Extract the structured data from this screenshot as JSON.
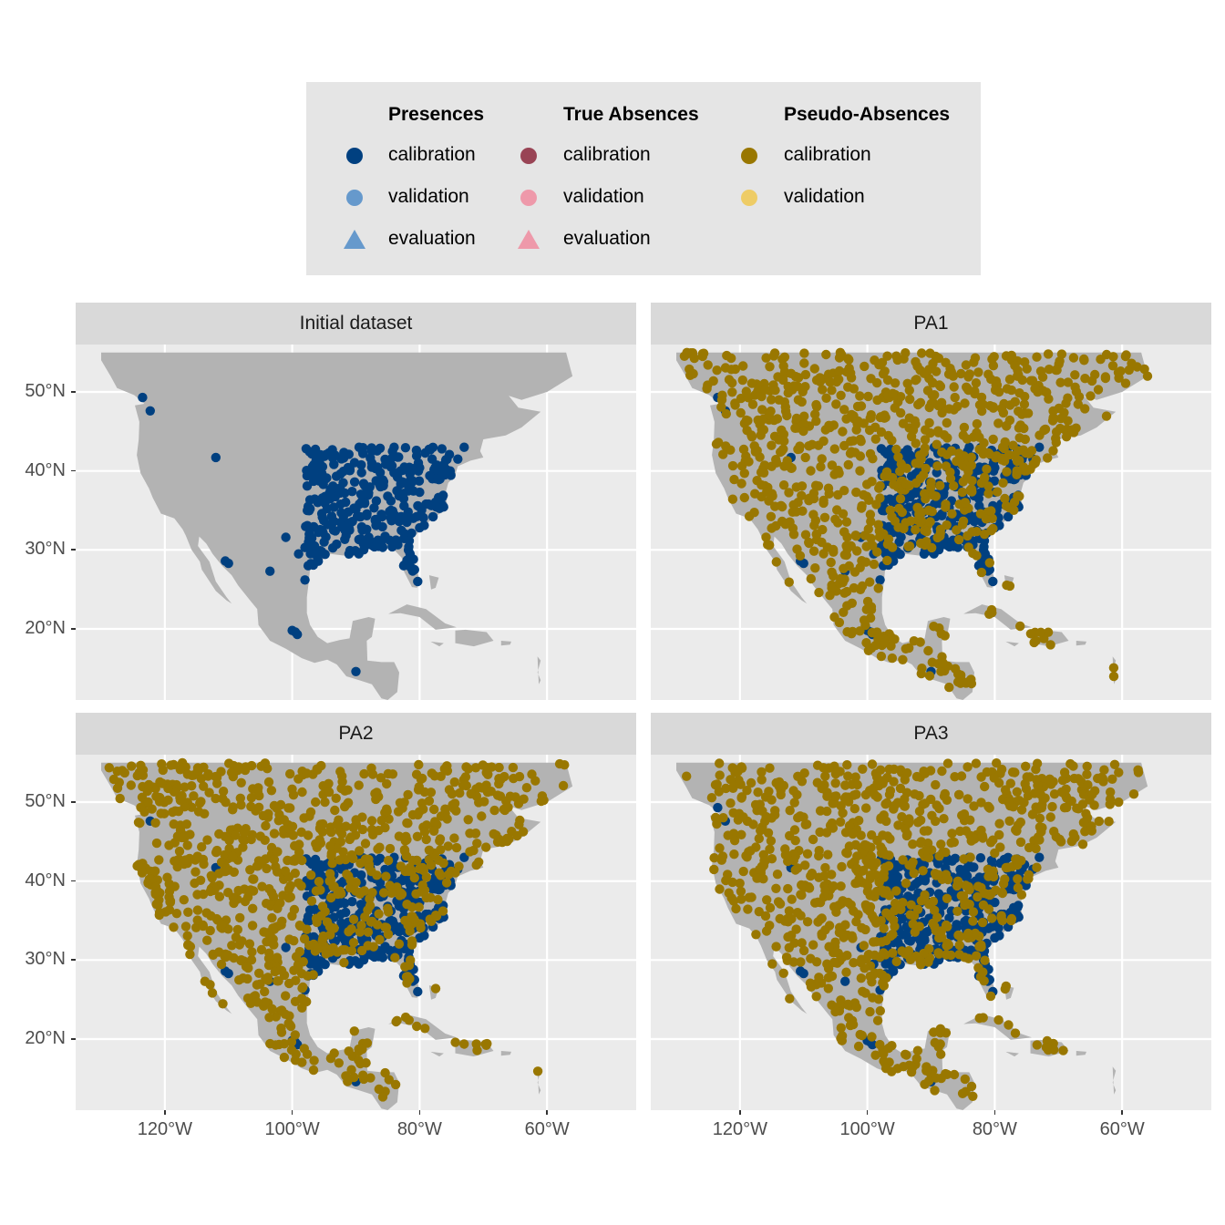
{
  "legend": {
    "groups": [
      {
        "title": "Presences",
        "items": [
          {
            "label": "calibration",
            "shape": "circle",
            "color": "#004080"
          },
          {
            "label": "validation",
            "shape": "circle",
            "color": "#6699cc"
          },
          {
            "label": "evaluation",
            "shape": "triangle",
            "color": "#6699cc"
          }
        ]
      },
      {
        "title": "True Absences",
        "items": [
          {
            "label": "calibration",
            "shape": "circle",
            "color": "#994455"
          },
          {
            "label": "validation",
            "shape": "circle",
            "color": "#ee99aa"
          },
          {
            "label": "evaluation",
            "shape": "triangle",
            "color": "#ee99aa"
          }
        ]
      },
      {
        "title": "Pseudo-Absences",
        "items": [
          {
            "label": "calibration",
            "shape": "circle",
            "color": "#997700"
          },
          {
            "label": "validation",
            "shape": "circle",
            "color": "#eecc66"
          }
        ]
      }
    ]
  },
  "map_data": {
    "type": "faceted point map",
    "land_color": "#b3b3b3",
    "panel_background": "#ebebeb",
    "presence_color": "#004080",
    "pseudo_absence_color": "#997700",
    "lon_range": [
      -134,
      -46
    ],
    "lat_range": [
      11,
      56
    ],
    "x_ticks": [
      {
        "value": -120,
        "label": "120°W"
      },
      {
        "value": -100,
        "label": "100°W"
      },
      {
        "value": -80,
        "label": "80°W"
      },
      {
        "value": -60,
        "label": "60°W"
      }
    ],
    "y_ticks": [
      {
        "value": 20,
        "label": "20°N"
      },
      {
        "value": 30,
        "label": "30°N"
      },
      {
        "value": 40,
        "label": "40°N"
      },
      {
        "value": 50,
        "label": "50°N"
      }
    ],
    "facets": [
      {
        "title": "Initial dataset",
        "show_pseudo_absences": false,
        "seed": 11
      },
      {
        "title": "PA1",
        "show_pseudo_absences": true,
        "seed": 23
      },
      {
        "title": "PA2",
        "show_pseudo_absences": true,
        "seed": 37
      },
      {
        "title": "PA3",
        "show_pseudo_absences": true,
        "seed": 51
      }
    ],
    "presence_points": [
      [
        -123.5,
        49.3
      ],
      [
        -122.3,
        47.6
      ],
      [
        -112.0,
        41.7
      ],
      [
        -110.5,
        28.6
      ],
      [
        -110.0,
        28.3
      ],
      [
        -103.5,
        27.3
      ],
      [
        -100.0,
        19.8
      ],
      [
        -99.2,
        19.3
      ],
      [
        -99.5,
        19.6
      ],
      [
        -90.0,
        14.6
      ],
      [
        -98.0,
        26.2
      ],
      [
        -101.0,
        31.6
      ],
      [
        -96.0,
        36.0
      ],
      [
        -92.0,
        38.5
      ],
      [
        -89.5,
        43.0
      ],
      [
        -87.5,
        42.5
      ],
      [
        -84.0,
        43.0
      ],
      [
        -80.5,
        42.6
      ],
      [
        -76.5,
        42.8
      ],
      [
        -74.0,
        41.5
      ],
      [
        -73.0,
        43.0
      ],
      [
        -80.3,
        26.0
      ],
      [
        -80.8,
        27.5
      ],
      [
        -81.5,
        29.5
      ],
      [
        -82.5,
        28.0
      ],
      [
        -81.7,
        30.4
      ],
      [
        -80.0,
        32.8
      ],
      [
        -77.9,
        34.2
      ],
      [
        -76.3,
        36.9
      ],
      [
        -77.0,
        38.9
      ],
      [
        -79.0,
        35.8
      ],
      [
        -84.4,
        33.7
      ],
      [
        -86.8,
        33.5
      ],
      [
        -90.1,
        29.9
      ],
      [
        -95.4,
        29.8
      ],
      [
        -97.0,
        32.8
      ],
      [
        -97.5,
        35.5
      ],
      [
        -94.6,
        39.1
      ],
      [
        -90.2,
        38.6
      ],
      [
        -86.2,
        39.8
      ],
      [
        -83.0,
        40.0
      ],
      [
        -85.7,
        38.2
      ],
      [
        -86.8,
        36.2
      ],
      [
        -90.0,
        35.1
      ],
      [
        -92.3,
        34.7
      ],
      [
        -88.0,
        30.7
      ],
      [
        -84.3,
        30.4
      ],
      [
        -82.0,
        33.5
      ],
      [
        -81.0,
        34.0
      ],
      [
        -78.6,
        35.8
      ],
      [
        -80.0,
        37.3
      ],
      [
        -78.0,
        39.0
      ],
      [
        -75.2,
        40.0
      ],
      [
        -82.5,
        36.5
      ],
      [
        -84.5,
        35.0
      ],
      [
        -86.0,
        34.5
      ],
      [
        -89.0,
        32.5
      ],
      [
        -91.0,
        32.5
      ],
      [
        -93.5,
        32.5
      ],
      [
        -95.0,
        31.0
      ],
      [
        -98.0,
        30.3
      ],
      [
        -99.0,
        29.5
      ],
      [
        -97.5,
        28.0
      ],
      [
        -96.5,
        30.5
      ],
      [
        -94.0,
        36.5
      ],
      [
        -92.5,
        37.2
      ],
      [
        -88.5,
        37.0
      ],
      [
        -85.0,
        36.8
      ],
      [
        -83.5,
        37.5
      ],
      [
        -81.5,
        38.5
      ],
      [
        -87.5,
        41.0
      ],
      [
        -84.5,
        41.5
      ],
      [
        -80.0,
        40.4
      ],
      [
        -77.5,
        40.5
      ],
      [
        -76.0,
        39.5
      ]
    ]
  }
}
